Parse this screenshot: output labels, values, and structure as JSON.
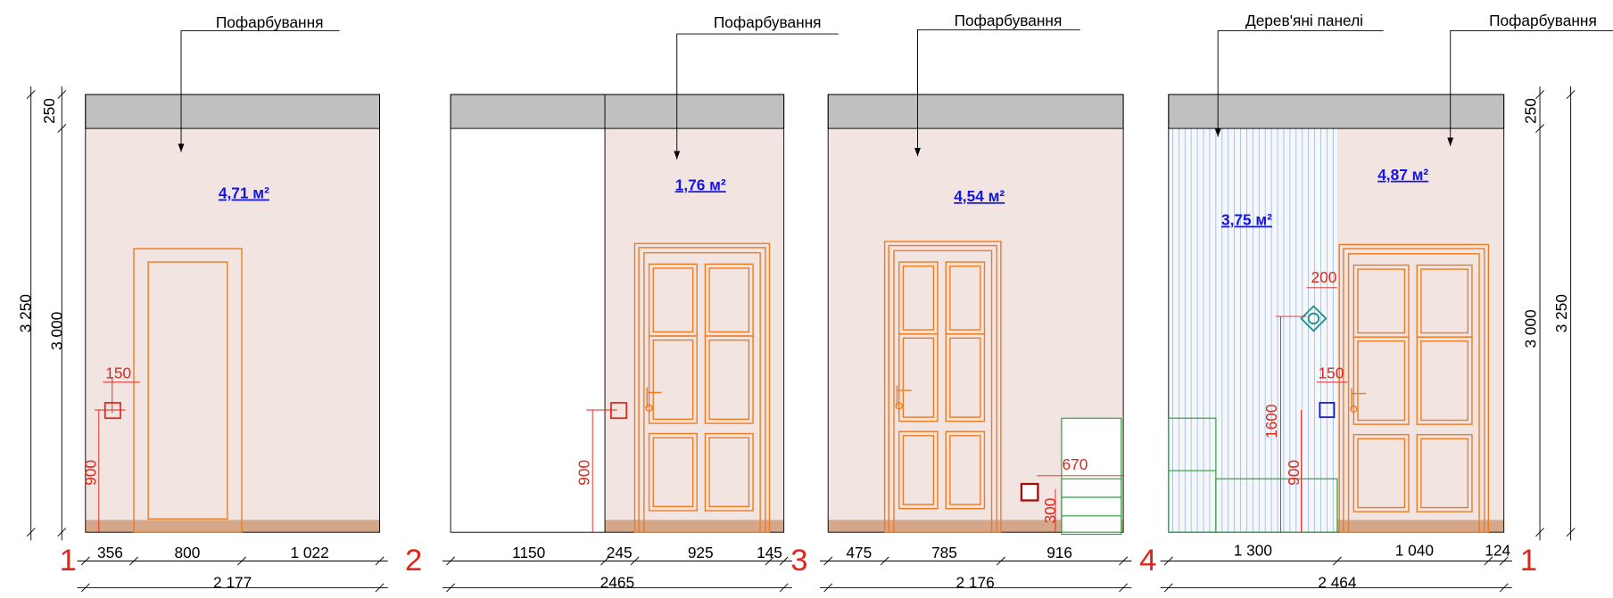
{
  "panels": [
    {
      "marker": "1",
      "labels": [
        "Пофарбування"
      ],
      "areas": [
        "4,71 м²"
      ],
      "left_dims": [
        "250",
        "3 000",
        "3 250"
      ],
      "red_dims": [
        "150",
        "900"
      ],
      "bottom_dims": [
        "356",
        "800",
        "1 022"
      ],
      "total": "2 177"
    },
    {
      "marker": "2",
      "labels": [
        "Пофарбування"
      ],
      "areas": [
        "1,76 м²"
      ],
      "red_dims": [
        "900"
      ],
      "bottom_dims": [
        "1150",
        "245",
        "925",
        "145"
      ],
      "total": "2465"
    },
    {
      "marker": "3",
      "labels": [
        "Пофарбування"
      ],
      "areas": [
        "4,54 м²"
      ],
      "red_dims": [
        "670",
        "300"
      ],
      "bottom_dims": [
        "475",
        "785",
        "916"
      ],
      "total": "2 176"
    },
    {
      "marker": "4",
      "end_marker": "1",
      "labels": [
        "Дерев'яні панелі",
        "Пофарбування"
      ],
      "areas": [
        "3,75 м²",
        "4,87 м²"
      ],
      "right_dims": [
        "250",
        "3 000",
        "3 250"
      ],
      "red_dims": [
        "200",
        "1600",
        "150",
        "900"
      ],
      "bottom_dims": [
        "1 300",
        "1 040",
        "124"
      ],
      "total": "2 464"
    }
  ]
}
